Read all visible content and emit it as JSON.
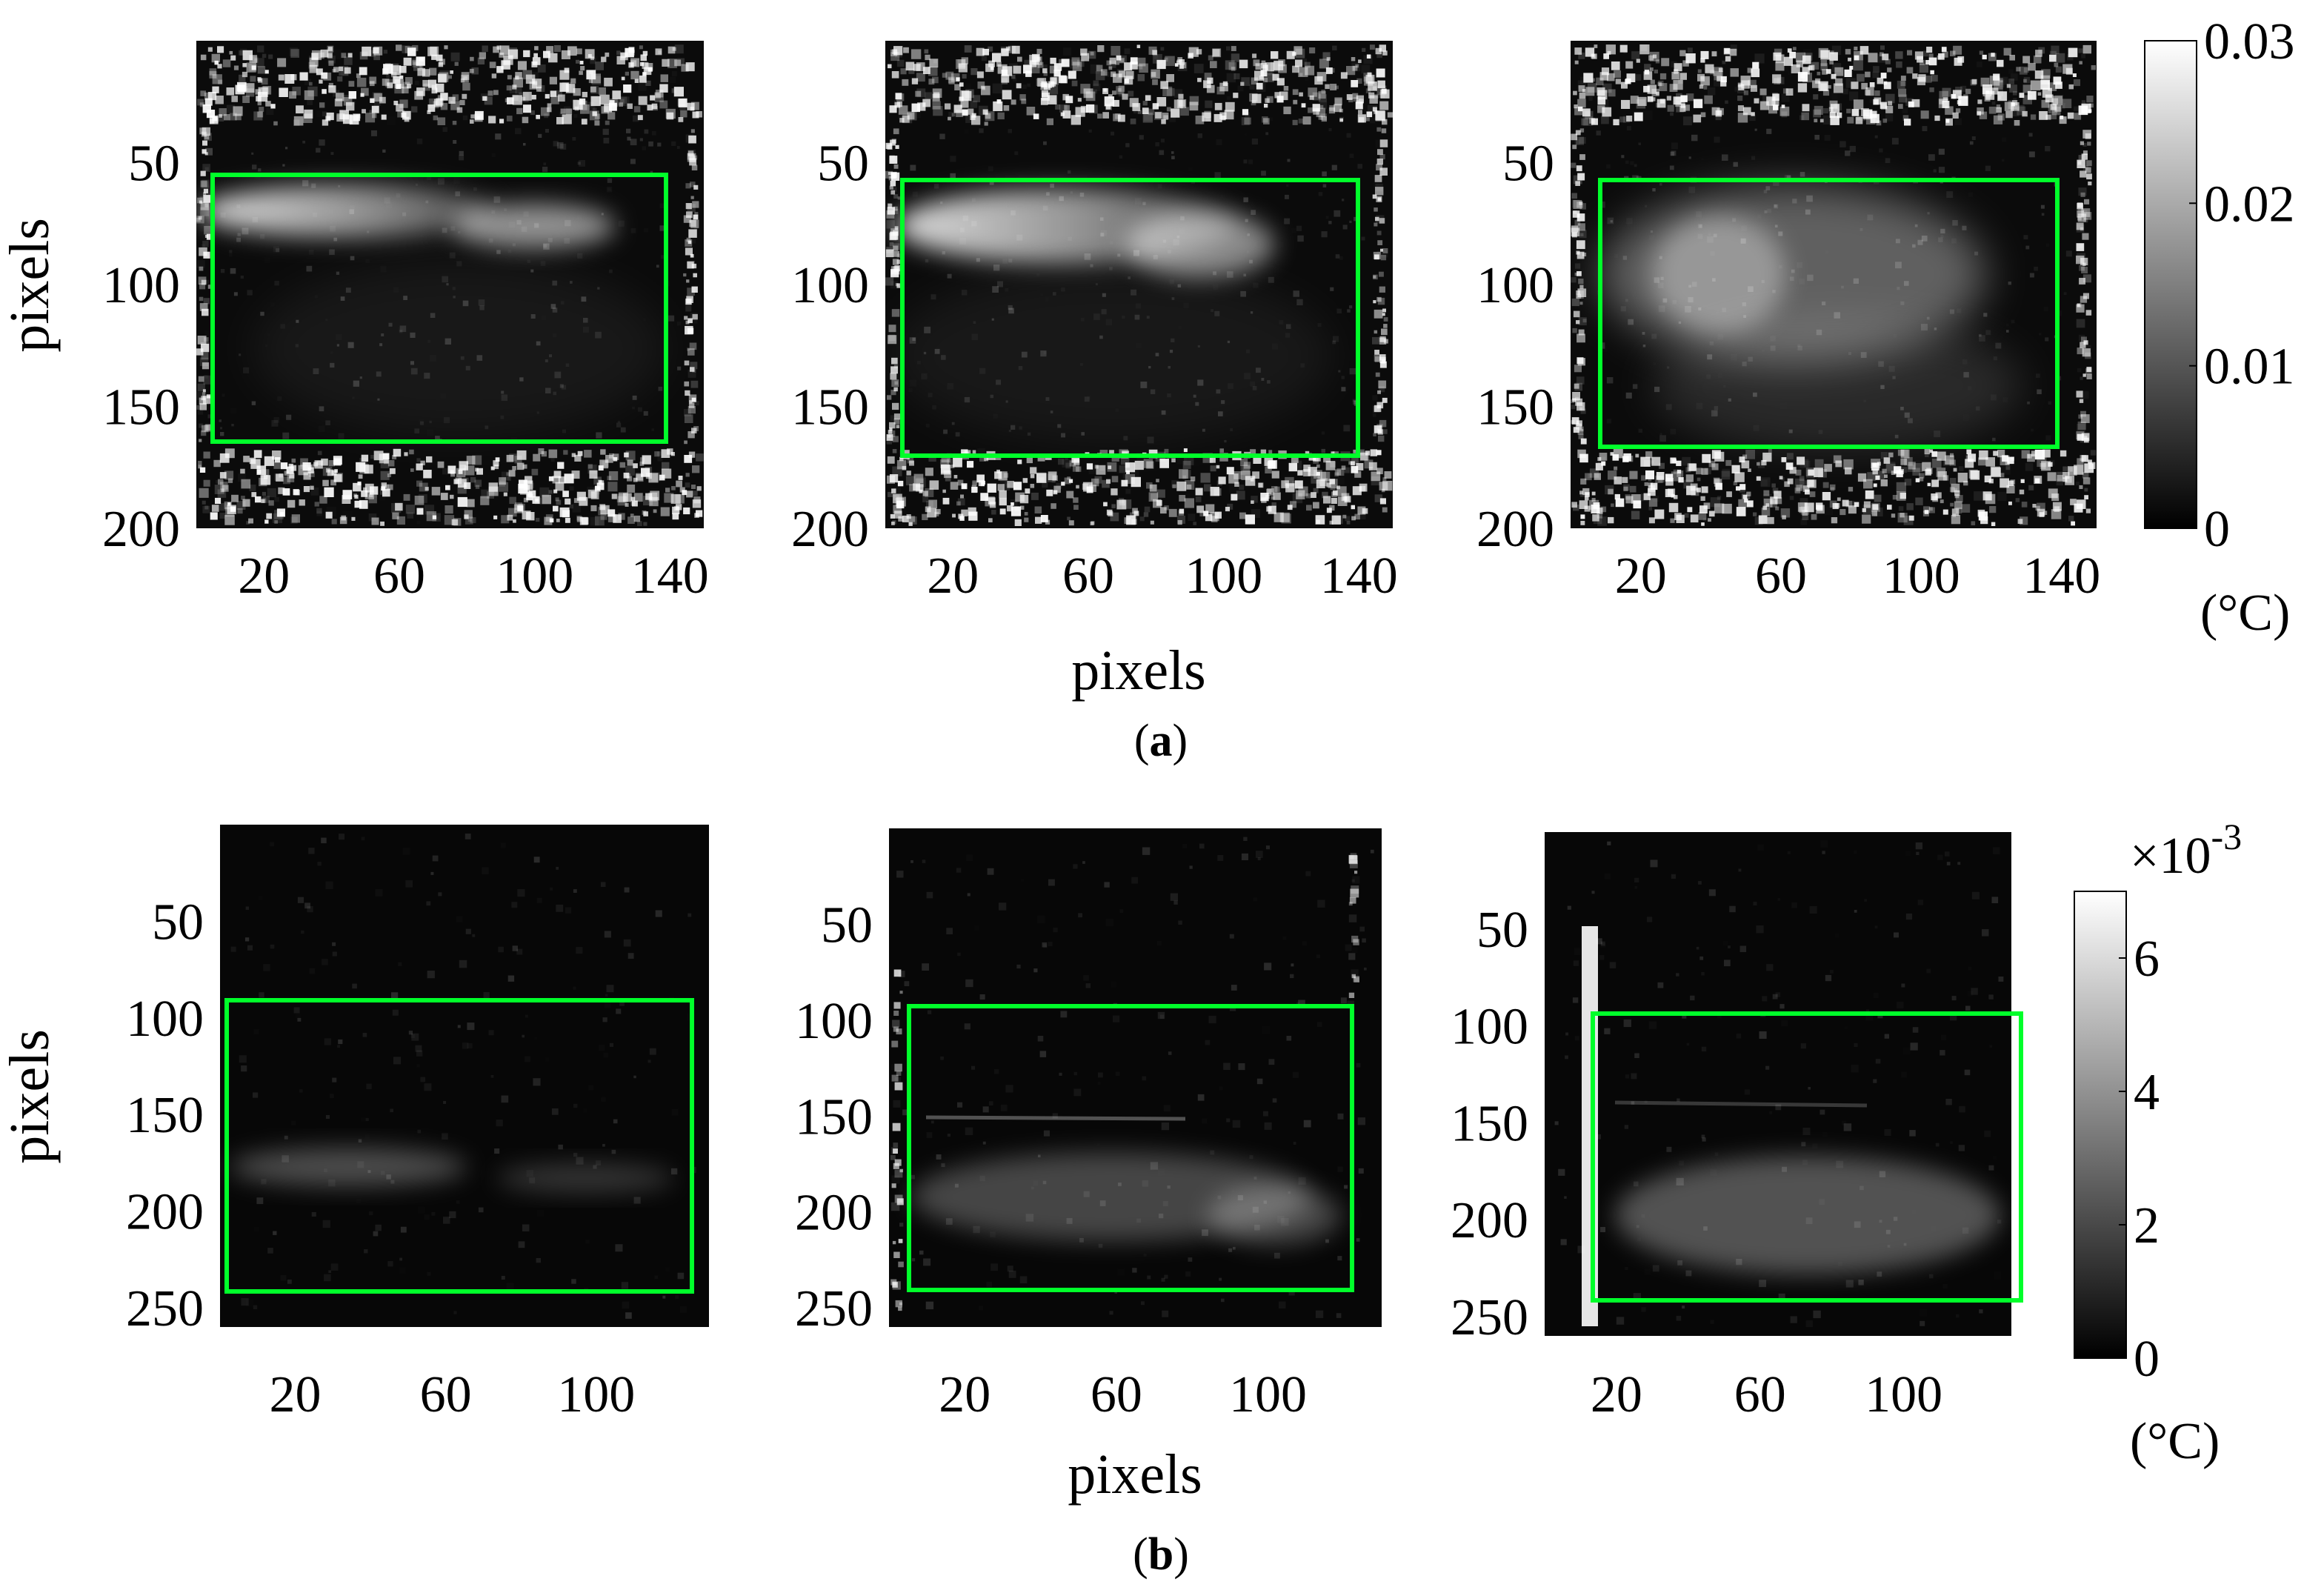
{
  "figure": {
    "caption_a": {
      "open": "(",
      "letter": "a",
      "close": ")"
    },
    "caption_b": {
      "open": "(",
      "letter": "b",
      "close": ")"
    },
    "ylabel_a": "pixels",
    "ylabel_b": "pixels",
    "xlabel_a": "pixels",
    "xlabel_b": "pixels"
  },
  "colors": {
    "roi_box": "#00ff2a",
    "colormap_low": "#000000",
    "colormap_high": "#ffffff"
  },
  "chart_data": [
    {
      "type": "heatmap",
      "row": "a",
      "panels": 3,
      "colormap": "gray",
      "xlim": [
        0,
        150
      ],
      "ylim": [
        200,
        0
      ],
      "x_ticks": [
        "20",
        "60",
        "100",
        "140"
      ],
      "y_ticks": [
        "50",
        "100",
        "150",
        "200"
      ],
      "ylabel": "pixels",
      "xlabel": "pixels",
      "colorbar": {
        "range": [
          0,
          0.03
        ],
        "ticks": [
          "0",
          "0.01",
          "0.02",
          "0.03"
        ],
        "unit": "(°C)",
        "exponent": ""
      },
      "roi_boxes": [
        {
          "x": [
            5,
            138
          ],
          "y": [
            55,
            163
          ]
        },
        {
          "x": [
            5,
            138
          ],
          "y": [
            55,
            168
          ]
        },
        {
          "x": [
            10,
            141
          ],
          "y": [
            55,
            167
          ]
        }
      ]
    },
    {
      "type": "heatmap",
      "row": "b",
      "panels": 3,
      "colormap": "gray",
      "xlim": [
        0,
        130
      ],
      "ylim": [
        260,
        0
      ],
      "x_ticks": [
        "20",
        "60",
        "100"
      ],
      "y_ticks": [
        "50",
        "100",
        "150",
        "200",
        "250"
      ],
      "ylabel": "pixels",
      "xlabel": "pixels",
      "colorbar": {
        "range": [
          0,
          7
        ],
        "ticks": [
          "0",
          "2",
          "4",
          "6"
        ],
        "unit": "(°C)",
        "exponent": "×10",
        "exponent_power": "-3"
      },
      "roi_boxes": [
        {
          "x": [
            2,
            128
          ],
          "y": [
            90,
            246
          ]
        },
        {
          "x": [
            5,
            126
          ],
          "y": [
            92,
            244
          ]
        },
        {
          "x": [
            11,
            126
          ],
          "y": [
            94,
            248
          ]
        }
      ]
    }
  ]
}
